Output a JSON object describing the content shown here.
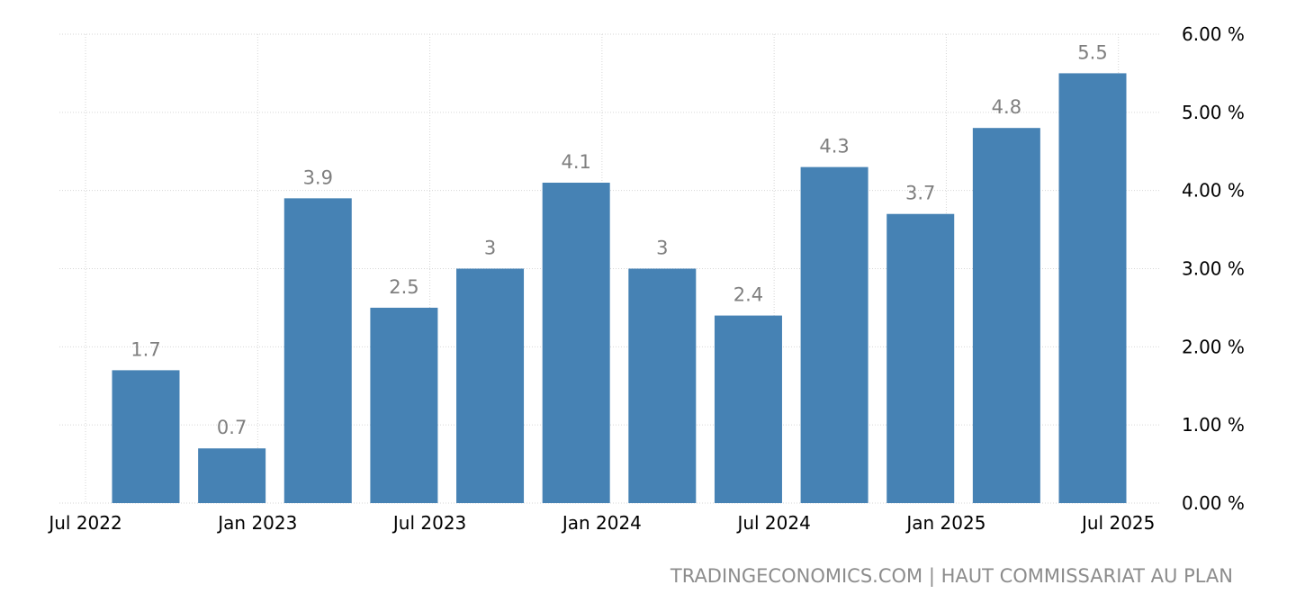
{
  "source_text": "TRADINGECONOMICS.COM | HAUT COMMISSARIAT AU PLAN",
  "chart_data": {
    "type": "bar",
    "categories": [
      "2022-Q3",
      "2022-Q4",
      "2023-Q1",
      "2023-Q2",
      "2023-Q3",
      "2023-Q4",
      "2024-Q1",
      "2024-Q2",
      "2024-Q3",
      "2024-Q4",
      "2025-Q1",
      "2025-Q2"
    ],
    "values": [
      1.7,
      0.7,
      3.9,
      2.5,
      3,
      4.1,
      3,
      2.4,
      4.3,
      3.7,
      4.8,
      5.5
    ],
    "value_labels": [
      "1.7",
      "0.7",
      "3.9",
      "2.5",
      "3",
      "4.1",
      "3",
      "2.4",
      "4.3",
      "3.7",
      "4.8",
      "5.5"
    ],
    "x_tick_labels": [
      "Jul 2022",
      "Jan 2023",
      "Jul 2023",
      "Jan 2024",
      "Jul 2024",
      "Jan 2025",
      "Jul 2025"
    ],
    "y_tick_labels": [
      "0.00 %",
      "1.00 %",
      "2.00 %",
      "3.00 %",
      "4.00 %",
      "5.00 %",
      "6.00 %"
    ],
    "ylim": [
      0,
      6
    ],
    "y_axis_position": "right",
    "grid": true,
    "bar_color": "#4682b4",
    "label_color": "#7f7f7f",
    "title": "",
    "xlabel": "",
    "ylabel": ""
  }
}
